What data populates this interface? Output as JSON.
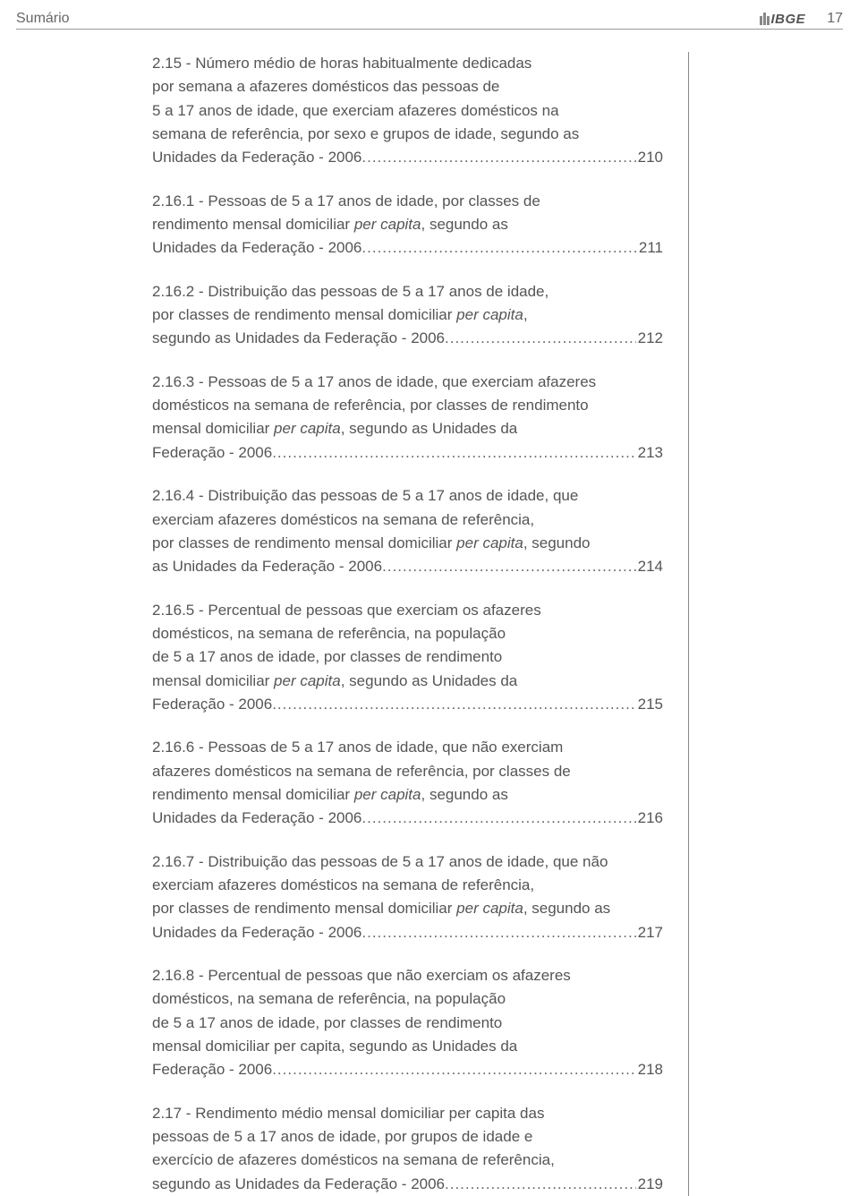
{
  "header": {
    "title": "Sumário",
    "logo_text": "IBGE",
    "page_number": "17"
  },
  "entries": [
    {
      "lines": [
        "2.15 - Número médio de horas habitualmente dedicadas",
        "por semana a afazeres domésticos das pessoas de",
        "5 a 17 anos de idade, que exerciam afazeres domésticos na",
        "semana de referência, por sexo e grupos de idade, segundo as"
      ],
      "tail": "Unidades da Federação - 2006",
      "page": "210"
    },
    {
      "lines": [
        "2.16.1 - Pessoas de 5 a 17 anos de idade, por classes de",
        "rendimento mensal domiciliar <i>per capita</i>, segundo as"
      ],
      "tail": "Unidades da Federação - 2006",
      "page": "211"
    },
    {
      "lines": [
        "2.16.2 - Distribuição das pessoas de 5 a 17 anos de idade,",
        "por classes de rendimento mensal domiciliar <i>per capita</i>,"
      ],
      "tail": "segundo as Unidades da Federação - 2006",
      "page": " 212"
    },
    {
      "lines": [
        "2.16.3 - Pessoas de 5 a 17 anos de idade, que exerciam afazeres",
        "domésticos na semana de referência, por classes de rendimento",
        "mensal domiciliar <i>per capita</i>, segundo as Unidades da"
      ],
      "tail": "Federação - 2006",
      "page": " 213"
    },
    {
      "lines": [
        "2.16.4 - Distribuição das pessoas de 5 a 17 anos de idade, que",
        "exerciam afazeres domésticos na semana de referência,",
        "por classes de rendimento mensal domiciliar <i>per capita</i>, segundo"
      ],
      "tail": "as Unidades da Federação - 2006",
      "page": "214"
    },
    {
      "lines": [
        "2.16.5 - Percentual de pessoas que exerciam os afazeres",
        "domésticos, na semana de referência, na população",
        "de 5 a 17 anos de idade, por classes de rendimento",
        "mensal domiciliar <i>per capita</i>, segundo as Unidades da"
      ],
      "tail": "Federação - 2006",
      "page": " 215"
    },
    {
      "lines": [
        "2.16.6 - Pessoas de 5 a 17 anos de idade, que não exerciam",
        "afazeres domésticos na semana de referência, por classes de",
        "rendimento mensal domiciliar <i>per capita</i>, segundo as"
      ],
      "tail": "Unidades da Federação - 2006",
      "page": " 216"
    },
    {
      "lines": [
        "2.16.7 - Distribuição das pessoas de 5 a 17 anos de idade, que não",
        "exerciam afazeres domésticos na semana de referência,",
        "por classes de rendimento mensal domiciliar <i>per capita</i>, segundo as"
      ],
      "tail": "Unidades da Federação - 2006",
      "page": " 217"
    },
    {
      "lines": [
        "2.16.8 - Percentual de pessoas que não exerciam os afazeres",
        "domésticos, na semana de referência, na população",
        "de 5 a 17 anos de idade, por classes de rendimento",
        "mensal domiciliar per capita, segundo as Unidades da"
      ],
      "tail": "Federação - 2006",
      "page": " 218"
    },
    {
      "lines": [
        "2.17 - Rendimento médio mensal domiciliar per capita das",
        "pessoas de 5 a 17 anos de idade, por grupos de idade e",
        "exercício de afazeres domésticos na semana de referência,"
      ],
      "tail": "segundo as Unidades da Federação - 2006",
      "page": "219"
    }
  ]
}
